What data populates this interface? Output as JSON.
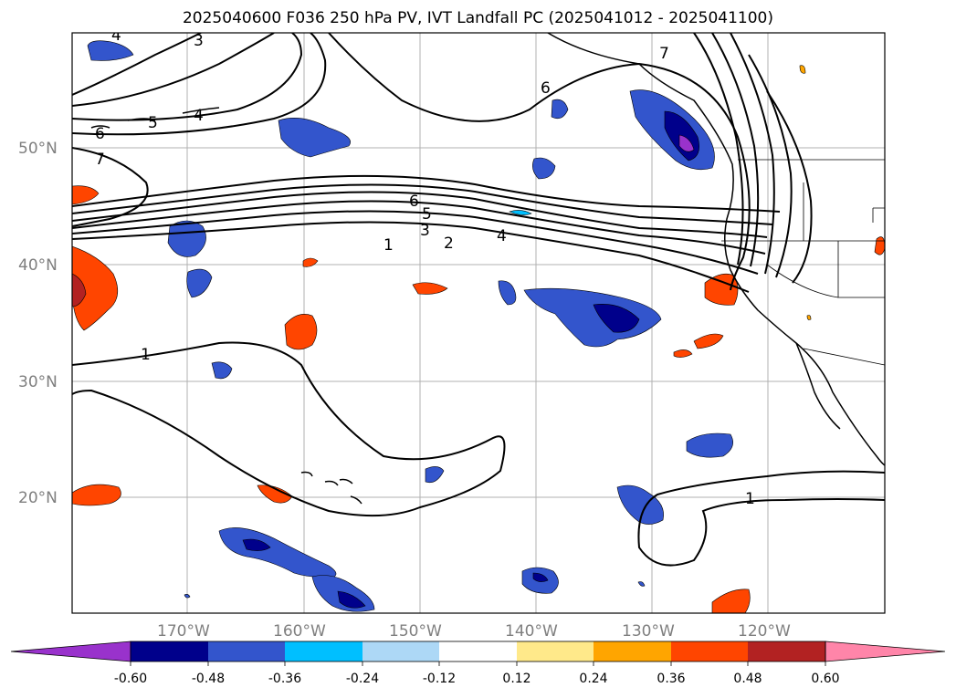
{
  "title": "2025040600 F036 250 hPa PV, IVT Landfall PC (2025041012 - 2025041100)",
  "lat_labels": [
    "50°N",
    "40°N",
    "30°N",
    "20°N"
  ],
  "lon_labels": [
    "170°W",
    "160°W",
    "150°W",
    "140°W",
    "130°W",
    "120°W"
  ],
  "colorbar": {
    "ticks": [
      "-0.60",
      "-0.48",
      "-0.36",
      "-0.24",
      "-0.12",
      "0.12",
      "0.24",
      "0.36",
      "0.48",
      "0.60"
    ],
    "colors": [
      "#9932cc",
      "#00008b",
      "#3355cc",
      "#00bfff",
      "#add8f6",
      "#ffffff",
      "#ffe98a",
      "#ffa500",
      "#ff4500",
      "#b22222",
      "#ff85a9"
    ]
  },
  "contour_labels": [
    "1",
    "2",
    "3",
    "4",
    "5",
    "6",
    "7"
  ],
  "colors": {
    "contour": "#000000",
    "grid": "#b0b0b0",
    "coast": "#000000"
  }
}
